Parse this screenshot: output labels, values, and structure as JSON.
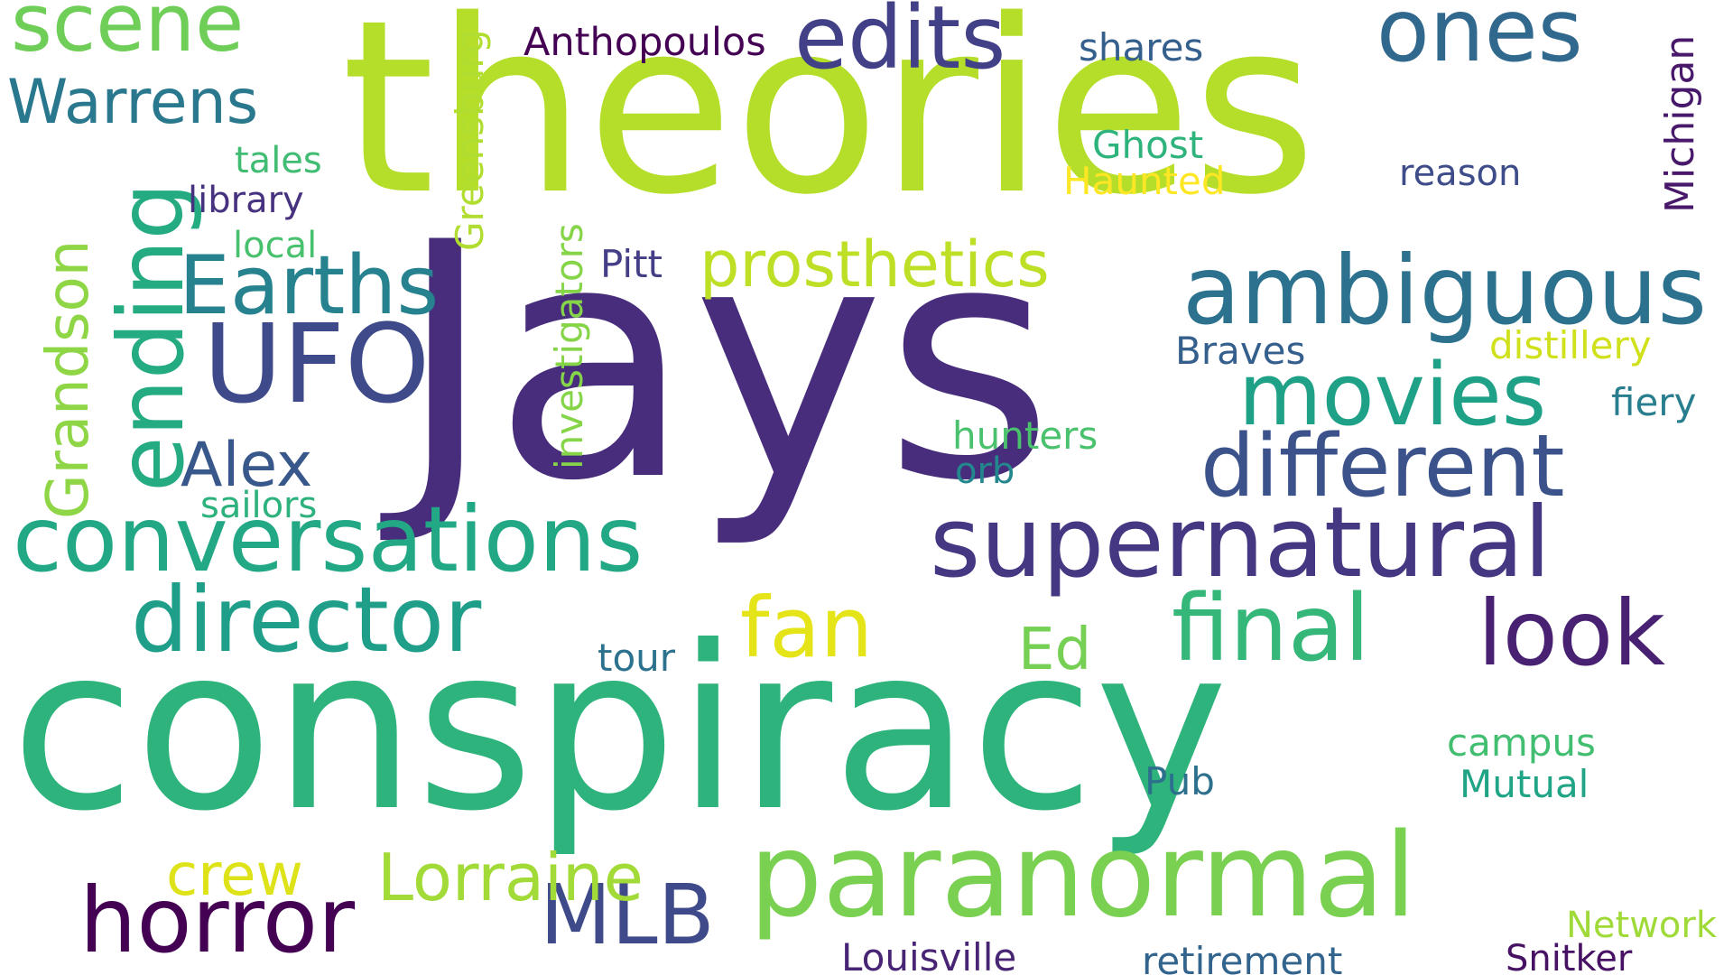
{
  "words": [
    {
      "text": "theories",
      "color": "#b5de2b"
    },
    {
      "text": "Jays",
      "color": "#472d7b"
    },
    {
      "text": "conspiracy",
      "color": "#2eb37c"
    },
    {
      "text": "paranormal",
      "color": "#7ad151"
    },
    {
      "text": "supernatural",
      "color": "#453781"
    },
    {
      "text": "conversations",
      "color": "#22a884"
    },
    {
      "text": "ambiguous",
      "color": "#2c728e"
    },
    {
      "text": "director",
      "color": "#1f9e89"
    },
    {
      "text": "different",
      "color": "#3b528b"
    },
    {
      "text": "final",
      "color": "#35b779"
    },
    {
      "text": "movies",
      "color": "#1fa187"
    },
    {
      "text": "horror",
      "color": "#440154"
    },
    {
      "text": "UFO",
      "color": "#3e4a89"
    },
    {
      "text": "edits",
      "color": "#424086"
    },
    {
      "text": "ones",
      "color": "#31688e"
    },
    {
      "text": "prosthetics",
      "color": "#bddf26"
    },
    {
      "text": "Earths",
      "color": "#26828e"
    },
    {
      "text": "look",
      "color": "#482173"
    },
    {
      "text": "scene",
      "color": "#6ece58"
    },
    {
      "text": "MLB",
      "color": "#3e4a89"
    },
    {
      "text": "Lorraine",
      "color": "#a2da37"
    },
    {
      "text": "fan",
      "color": "#e5e419"
    },
    {
      "text": "ending",
      "color": "#25ab82"
    },
    {
      "text": "Grandson",
      "color": "#8ed645"
    },
    {
      "text": "Warrens",
      "color": "#2a788e"
    },
    {
      "text": "Alex",
      "color": "#38588c"
    },
    {
      "text": "crew",
      "color": "#dde318"
    },
    {
      "text": "Ed",
      "color": "#75d054"
    },
    {
      "text": "Anthopoulos",
      "color": "#440154"
    },
    {
      "text": "shares",
      "color": "#355f8d"
    },
    {
      "text": "Ghost",
      "color": "#2eb37c"
    },
    {
      "text": "Haunted",
      "color": "#fde725"
    },
    {
      "text": "reason",
      "color": "#3e4c8a"
    },
    {
      "text": "Michigan",
      "color": "#48186a"
    },
    {
      "text": "tales",
      "color": "#40bd72"
    },
    {
      "text": "library",
      "color": "#46327e"
    },
    {
      "text": "local",
      "color": "#48c16e"
    },
    {
      "text": "Greensburg",
      "color": "#b0dd2f"
    },
    {
      "text": "investigators",
      "color": "#86d549"
    },
    {
      "text": "Pitt",
      "color": "#433e85"
    },
    {
      "text": "Braves",
      "color": "#355f8d"
    },
    {
      "text": "distillery",
      "color": "#d0e11c"
    },
    {
      "text": "fiery",
      "color": "#287d8e"
    },
    {
      "text": "hunters",
      "color": "#4ac16d"
    },
    {
      "text": "orb",
      "color": "#23888e"
    },
    {
      "text": "sailors",
      "color": "#2db27d"
    },
    {
      "text": "tour",
      "color": "#2c728e"
    },
    {
      "text": "campus",
      "color": "#42be71"
    },
    {
      "text": "Pub",
      "color": "#2d708e"
    },
    {
      "text": "Mutual",
      "color": "#20a486"
    },
    {
      "text": "Network",
      "color": "#a0da39"
    },
    {
      "text": "Louisville",
      "color": "#482475"
    },
    {
      "text": "retirement",
      "color": "#32648e"
    },
    {
      "text": "Snitker",
      "color": "#471164"
    }
  ]
}
